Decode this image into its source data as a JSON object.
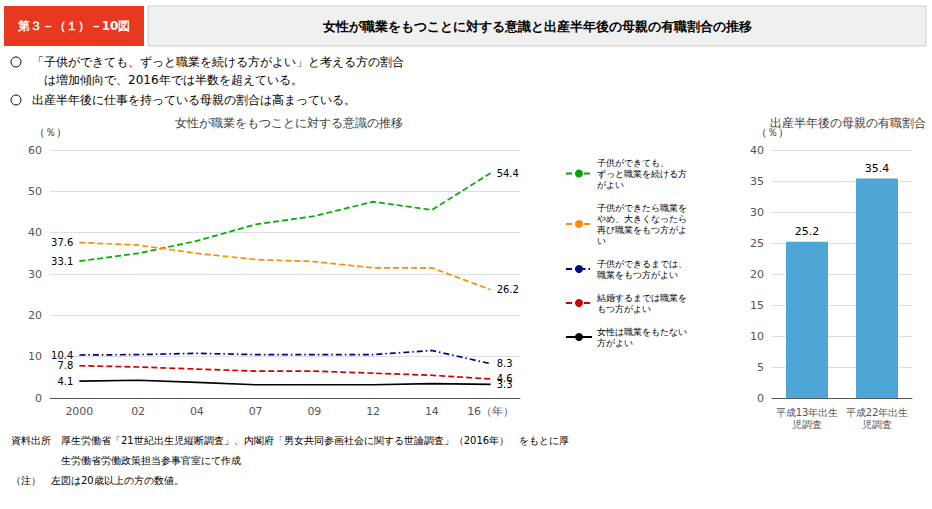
{
  "figure_number": "第３－（１）－10図",
  "title": "女性が職業をもつことに対する意識と出産半年後の母親の有職割合の推移",
  "bullets": [
    [
      "「子供ができても、ずっと職業を続ける方がよい」と考える方の割合",
      "　は増加傾向で、2016年では半数を超えている。"
    ],
    [
      "出産半年後に仕事を持っている母親の割合は高まっている。"
    ]
  ],
  "footnotes": [
    "資料出所　厚生労働省「21世紀出生児縦断調査」、内閣府「男女共同参画社会に関する世論調査」（2016年）　をもとに厚",
    "　　　　　生労働省労働政策担当参事官室にて作成",
    "（注）　左図は20歳以上の方の数値。"
  ],
  "chart_data": [
    {
      "type": "line",
      "title": "女性が職業をもつことに対する意識の推移",
      "y_label": "（％）",
      "categories": [
        "2000",
        "02",
        "04",
        "07",
        "09",
        "12",
        "14",
        "16（年）"
      ],
      "series": [
        {
          "name": "子供ができても、\nずっと職業を続ける方\nがよい",
          "color": "#00aa00",
          "line_style": "dashed",
          "values": [
            33.1,
            35.0,
            38.0,
            42.0,
            44.0,
            47.5,
            45.5,
            54.4
          ],
          "value_labels": [
            "33.1",
            null,
            null,
            null,
            null,
            null,
            null,
            "54.4"
          ]
        },
        {
          "name": "子供ができたら職業を\nやめ、大きくなったら\n再び職業をもつ方がよ\nい",
          "color": "#ff8c00",
          "line_style": "dashed",
          "values": [
            37.6,
            37.0,
            35.0,
            33.5,
            33.0,
            31.5,
            31.5,
            26.2
          ],
          "value_labels": [
            "37.6",
            null,
            null,
            null,
            null,
            null,
            null,
            "26.2"
          ]
        },
        {
          "name": "子供ができるまでは、\n職業をもつ方がよい",
          "color": "#000080",
          "line_style": "dashdot",
          "values": [
            10.4,
            10.5,
            10.8,
            10.5,
            10.5,
            10.5,
            11.5,
            8.3
          ],
          "value_labels": [
            "10.4",
            null,
            null,
            null,
            null,
            null,
            null,
            "8.3"
          ]
        },
        {
          "name": "結婚するまでは職業を\nもつ方がよい",
          "color": "#cc0000",
          "line_style": "dashed",
          "values": [
            7.8,
            7.5,
            7.0,
            6.5,
            6.5,
            6.0,
            5.5,
            4.6
          ],
          "value_labels": [
            "7.8",
            null,
            null,
            null,
            null,
            null,
            null,
            "4.6"
          ]
        },
        {
          "name": "女性は職業をもたない\n方がよい",
          "color": "#000000",
          "line_style": "solid",
          "values": [
            4.1,
            4.3,
            3.8,
            3.2,
            3.2,
            3.2,
            3.5,
            3.3
          ],
          "value_labels": [
            "4.1",
            null,
            null,
            null,
            null,
            null,
            null,
            "3.3"
          ]
        }
      ],
      "ylim": [
        0,
        60
      ],
      "yticks": [
        0,
        10,
        20,
        30,
        40,
        50,
        60
      ],
      "grid": true,
      "legend": "right"
    },
    {
      "type": "bar",
      "title": "出産半年後の母親の有職割合",
      "y_label": "（％）",
      "categories": [
        "平成13年出生児調査",
        "平成22年出生児調査"
      ],
      "values": [
        25.2,
        35.4
      ],
      "color": "#4da6d6",
      "ylim": [
        0,
        40
      ],
      "yticks": [
        0,
        5,
        10,
        15,
        20,
        25,
        30,
        35,
        40
      ],
      "grid": true,
      "data_labels": true
    }
  ]
}
